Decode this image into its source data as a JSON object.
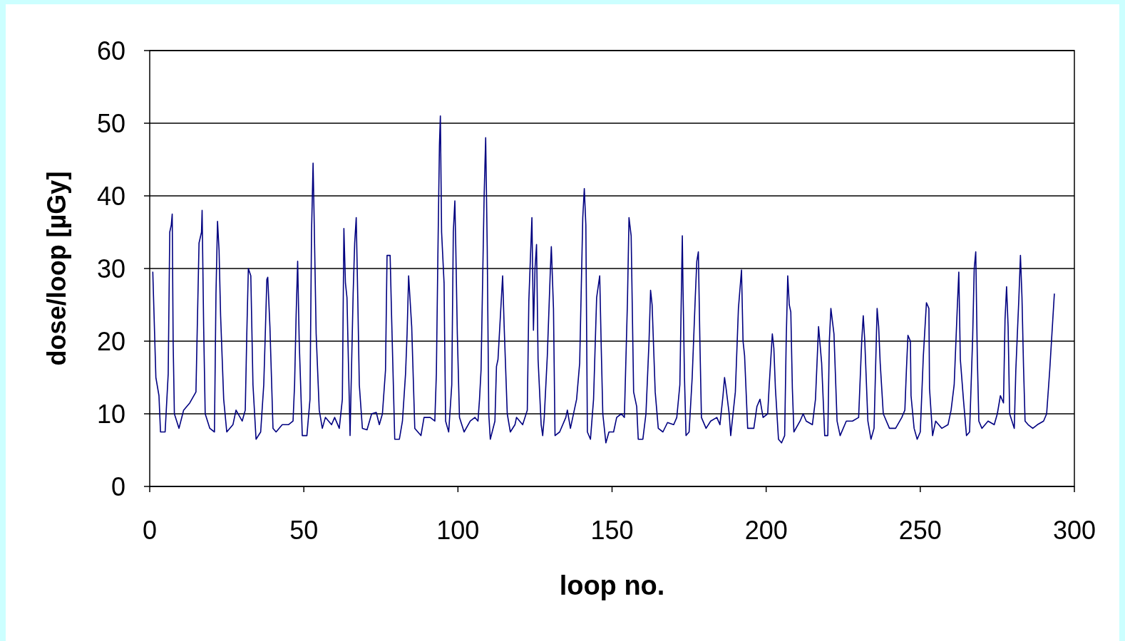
{
  "chart_data": {
    "type": "line",
    "xlabel": "loop no.",
    "ylabel": "dose/loop [µGy]",
    "xlim": [
      0,
      300
    ],
    "xticks": [
      0,
      50,
      100,
      150,
      200,
      250,
      300
    ],
    "ylim": [
      0,
      60
    ],
    "yticks": [
      0,
      10,
      20,
      30,
      40,
      50,
      60
    ],
    "grid": "y",
    "marker": "none",
    "line_style": "solid",
    "series": [
      {
        "color": "#000080",
        "x": [
          1,
          2,
          3,
          3.5,
          5,
          6,
          6.5,
          7,
          7.3,
          7.6,
          8,
          9.5,
          11,
          13,
          15,
          16,
          16.8,
          17,
          17.5,
          18,
          19.5,
          21,
          21.5,
          22,
          22.5,
          23,
          24,
          25,
          27,
          28,
          30,
          31,
          31.5,
          32,
          32.8,
          33.5,
          34.5,
          36,
          37,
          37.5,
          38,
          38.3,
          39,
          40,
          41,
          43,
          45,
          46.5,
          47,
          47.5,
          48,
          48.5,
          49.5,
          51,
          52,
          52.5,
          53,
          53.3,
          54,
          55,
          56,
          57,
          59,
          60,
          61.5,
          62.5,
          63,
          63.5,
          64,
          65,
          66,
          66.5,
          67,
          67.5,
          68,
          69,
          70.5,
          72,
          73.5,
          74.5,
          75.5,
          76.5,
          77,
          78,
          78.5,
          79.5,
          81,
          82,
          83,
          83.5,
          84,
          85,
          86,
          88,
          89,
          91,
          92.5,
          93,
          93.5,
          94,
          94.3,
          94.7,
          95.5,
          96,
          97,
          98,
          98.5,
          99,
          99.3,
          99.8,
          100.5,
          102,
          104,
          105.5,
          106.5,
          107,
          107.5,
          108.5,
          109,
          109.5,
          110,
          110.5,
          112,
          112.5,
          113,
          114.5,
          115,
          116,
          117,
          118.5,
          119,
          121,
          122.5,
          123,
          124,
          124.5,
          125,
          125.5,
          126,
          127,
          127.5,
          128,
          129,
          130,
          130.3,
          131,
          131.5,
          133,
          135,
          135.5,
          136.5,
          138.5,
          139.5,
          140.5,
          141,
          141.5,
          142,
          143,
          144,
          145,
          146,
          146.5,
          147,
          148,
          149,
          150.5,
          151.5,
          153,
          154,
          155,
          155.5,
          156.2,
          157,
          158,
          158.5,
          160,
          161,
          162,
          162.5,
          163,
          164,
          165,
          166.5,
          168,
          170,
          171,
          172,
          172.8,
          173,
          173.5,
          174,
          175,
          176,
          177,
          177.5,
          178,
          178.5,
          179,
          180.5,
          182,
          184,
          185,
          186,
          186.5,
          187,
          188,
          188.5,
          190,
          191,
          192,
          192.5,
          193,
          194,
          196,
          197,
          198,
          199,
          200.5,
          201,
          202,
          202.5,
          203,
          204,
          205,
          206,
          206.5,
          207,
          207.5,
          208,
          208.5,
          209,
          211,
          212,
          213,
          215,
          216,
          217,
          218,
          219,
          220,
          220.5,
          221,
          222,
          223,
          224,
          226,
          228,
          230,
          231,
          231.5,
          232,
          233,
          234,
          235,
          236,
          236.5,
          237,
          238,
          240,
          242,
          244,
          245,
          245.5,
          246,
          246.8,
          247,
          248,
          249,
          250,
          251,
          252,
          252.8,
          253,
          254,
          255,
          257,
          259,
          260,
          261,
          262,
          262.5,
          263,
          264,
          265,
          266,
          267,
          267.5,
          268,
          268.5,
          269,
          270,
          272,
          274,
          275,
          276,
          277,
          277.5,
          278,
          278.5,
          279,
          280.5,
          281,
          282,
          282.5,
          283,
          283.5,
          284,
          285,
          286.5,
          288,
          290,
          291,
          292,
          293,
          293.5
        ],
        "values": [
          29.5,
          15,
          12.5,
          7.5,
          7.5,
          15.5,
          35,
          36,
          37.5,
          20,
          10,
          8,
          10.5,
          11.5,
          13,
          33.5,
          35,
          38,
          22,
          10,
          8,
          7.5,
          26.5,
          36.5,
          32.5,
          23.5,
          12,
          7.5,
          8.5,
          10.5,
          9,
          10.5,
          21,
          30,
          29,
          14,
          6.5,
          7.5,
          14,
          21,
          28.5,
          28.8,
          22,
          8,
          7.5,
          8.5,
          8.5,
          9,
          14,
          23.5,
          31,
          20,
          7,
          7,
          12,
          35,
          44.5,
          38,
          21,
          10.5,
          8,
          9.5,
          8.5,
          9.5,
          8,
          12,
          35.5,
          28,
          26,
          7,
          26.5,
          33.5,
          37,
          26,
          14,
          8,
          7.8,
          10,
          10.2,
          8.5,
          10,
          16,
          31.8,
          31.8,
          23,
          6.5,
          6.5,
          9,
          15.5,
          21,
          29,
          22,
          8,
          7,
          9.5,
          9.5,
          9,
          15.5,
          32,
          47,
          51,
          35,
          28,
          9,
          7.5,
          14,
          35,
          39.3,
          33,
          21,
          9.5,
          7.5,
          9,
          9.5,
          9,
          12,
          16,
          40,
          48,
          33,
          10,
          6.5,
          9,
          16.5,
          17.5,
          29,
          22,
          10,
          7.5,
          8.5,
          9.5,
          8.5,
          10.5,
          25.5,
          37,
          21.5,
          30,
          33.3,
          17.5,
          8.5,
          7,
          9.5,
          18,
          30,
          33,
          24.5,
          7,
          7.5,
          9.5,
          10.5,
          8,
          12,
          17,
          37,
          41,
          36,
          7.5,
          6.5,
          12,
          26,
          29,
          19,
          10,
          6,
          7.5,
          7.5,
          9.5,
          10,
          9.5,
          25.5,
          37,
          34.5,
          13,
          11,
          6.5,
          6.5,
          10,
          20,
          27,
          25,
          13,
          8,
          7.5,
          8.8,
          8.5,
          9.5,
          14,
          34.5,
          28,
          15,
          7,
          7.5,
          15,
          26,
          31,
          32.3,
          20,
          9.5,
          8,
          9,
          9.5,
          8.5,
          12.5,
          15,
          13.5,
          10,
          7,
          13,
          24.5,
          29.8,
          20,
          18,
          8,
          8,
          11,
          12,
          9.5,
          10,
          14,
          21,
          19,
          13.5,
          6.5,
          6,
          7,
          20,
          29,
          25,
          24,
          13.5,
          7.5,
          9,
          10,
          9,
          8.5,
          12,
          22,
          17,
          7,
          7,
          20,
          24.5,
          21,
          9,
          7,
          9,
          9,
          9.5,
          20,
          23.5,
          20,
          9,
          6.5,
          8,
          24.5,
          22,
          17,
          10,
          8,
          8,
          9.5,
          10.5,
          16,
          20.8,
          20,
          12.5,
          8,
          6.5,
          7.5,
          18,
          25.3,
          24.5,
          13.5,
          7,
          9,
          8,
          8.5,
          10.5,
          14,
          24.5,
          29.5,
          17.5,
          12,
          7,
          7.5,
          20.5,
          30,
          32.3,
          18,
          9,
          8,
          9,
          8.5,
          10,
          12.5,
          11.5,
          23,
          27.5,
          22,
          10,
          8,
          16,
          26,
          31.8,
          26,
          16.5,
          9,
          8.5,
          8,
          8.5,
          9,
          10,
          16,
          23,
          26.5
        ]
      }
    ]
  }
}
